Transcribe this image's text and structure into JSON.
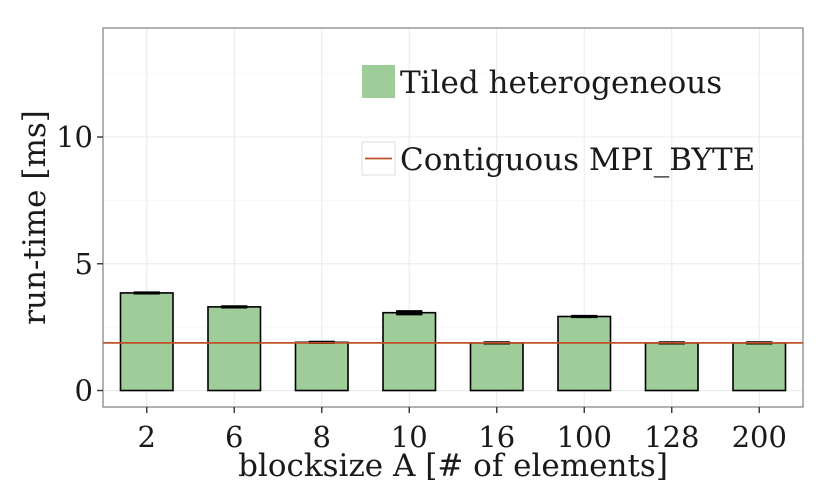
{
  "chart_data": {
    "type": "bar",
    "xlabel": "blocksize A [# of elements]",
    "ylabel": "run-time [ms]",
    "categories": [
      "2",
      "6",
      "8",
      "10",
      "16",
      "100",
      "128",
      "200"
    ],
    "ylim": [
      -0.65,
      14.3
    ],
    "yticks": [
      0,
      5,
      10
    ],
    "grid": true,
    "legend_position": "top-right",
    "series": [
      {
        "name": "Tiled heterogeneous",
        "kind": "bar",
        "color": "#9fcd99",
        "values": [
          3.85,
          3.3,
          1.9,
          3.07,
          1.88,
          2.92,
          1.88,
          1.88
        ],
        "error": [
          0.02,
          0.02,
          0.02,
          0.06,
          0.02,
          0.02,
          0.02,
          0.02
        ]
      },
      {
        "name": "Contiguous MPI_BYTE",
        "kind": "hline",
        "color": "#c0502a",
        "value": 1.88
      }
    ]
  }
}
